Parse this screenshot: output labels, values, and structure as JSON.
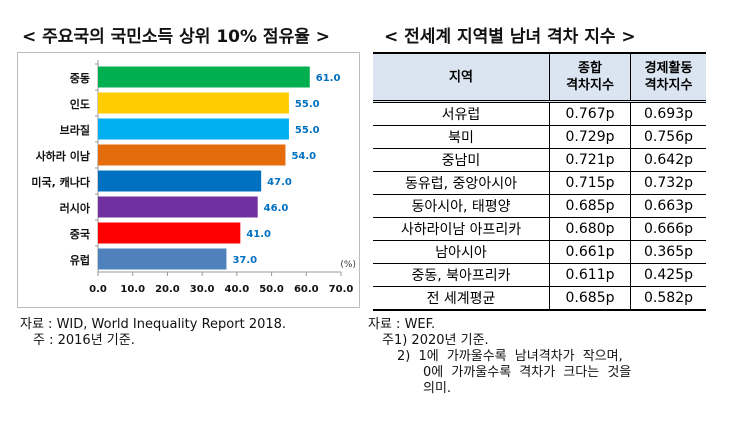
{
  "left": {
    "title": "< 주요국의 국민소득 상위 10% 점유율 >",
    "source": "자료 : WID, World Inequality Report 2018.",
    "note": "주 : 2016년 기준."
  },
  "chart_data": {
    "type": "bar",
    "orientation": "horizontal",
    "title": "주요국의 국민소득 상위 10% 점유율",
    "unit_label": "(%)",
    "categories": [
      "중동",
      "인도",
      "브라질",
      "사하라 이남",
      "미국, 캐나다",
      "러시아",
      "중국",
      "유럽"
    ],
    "values": [
      61.0,
      55.0,
      55.0,
      54.0,
      47.0,
      46.0,
      41.0,
      37.0
    ],
    "value_labels": [
      "61.0",
      "55.0",
      "55.0",
      "54.0",
      "47.0",
      "46.0",
      "41.0",
      "37.0"
    ],
    "colors": [
      "#00b050",
      "#ffcc00",
      "#00b0f0",
      "#e46c0a",
      "#0070c0",
      "#7030a0",
      "#ff0000",
      "#4f81bd"
    ],
    "xlim": [
      0,
      70
    ],
    "xticks": [
      "0.0",
      "10.0",
      "20.0",
      "30.0",
      "40.0",
      "50.0",
      "60.0",
      "70.0"
    ],
    "label_color": "#0070c0"
  },
  "right": {
    "title": "< 전세계 지역별 남녀 격차 지수 >",
    "headers": [
      "지역",
      "종합 격차지수",
      "경제활동 격차지수"
    ],
    "header_lines": [
      [
        "지역"
      ],
      [
        "종합",
        "격차지수"
      ],
      [
        "경제활동",
        "격차지수"
      ]
    ],
    "rows": [
      [
        "서유럽",
        "0.767p",
        "0.693p"
      ],
      [
        "북미",
        "0.729p",
        "0.756p"
      ],
      [
        "중남미",
        "0.721p",
        "0.642p"
      ],
      [
        "동유럽, 중앙아시아",
        "0.715p",
        "0.732p"
      ],
      [
        "동아시아, 태평양",
        "0.685p",
        "0.663p"
      ],
      [
        "사하라이남 아프리카",
        "0.680p",
        "0.666p"
      ],
      [
        "남아시아",
        "0.661p",
        "0.365p"
      ],
      [
        "중동, 북아프리카",
        "0.611p",
        "0.425p"
      ],
      [
        "전 세계평균",
        "0.685p",
        "0.582p"
      ]
    ],
    "source": "자료 : WEF.",
    "note1": "주1) 2020년 기준.",
    "note2a": "2) 1에 가까울수록 남녀격차가 작으며,",
    "note2b": "0에 가까울수록 격차가 크다는 것을",
    "note2c": "의미."
  }
}
